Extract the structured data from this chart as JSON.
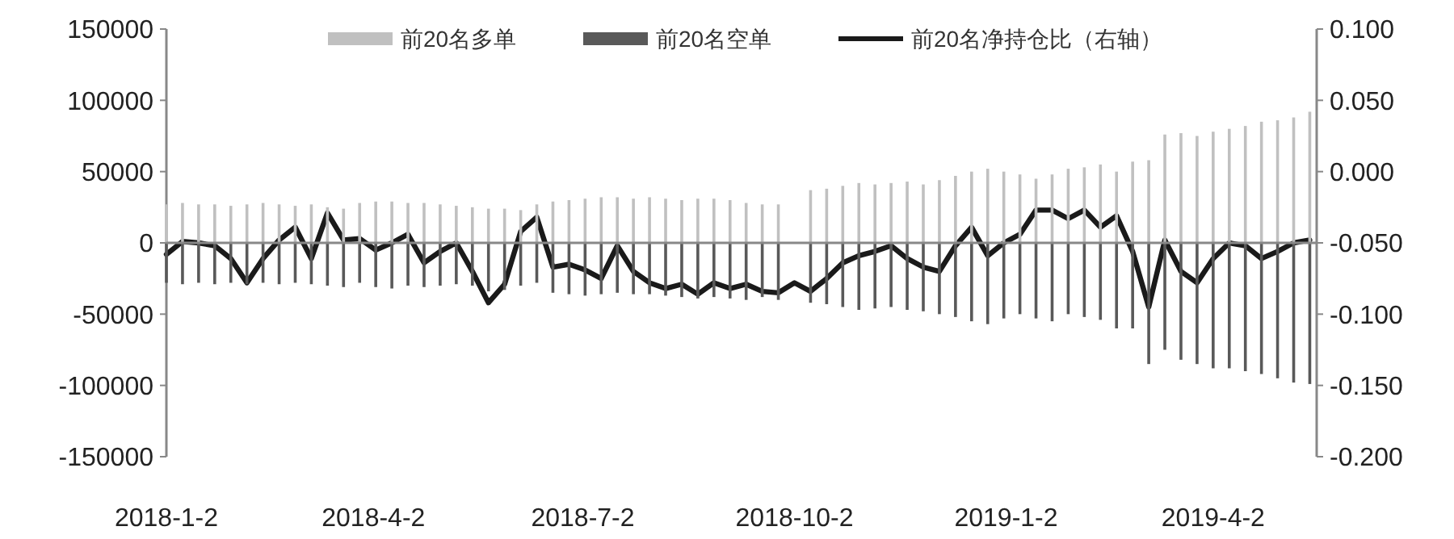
{
  "chart_data": {
    "type": "bar",
    "legend": "top",
    "x": [
      "2018-01-02",
      "2018-01-09",
      "2018-01-16",
      "2018-01-23",
      "2018-01-30",
      "2018-02-06",
      "2018-02-13",
      "2018-02-20",
      "2018-02-27",
      "2018-03-06",
      "2018-03-13",
      "2018-03-20",
      "2018-03-27",
      "2018-04-03",
      "2018-04-10",
      "2018-04-17",
      "2018-04-24",
      "2018-05-01",
      "2018-05-08",
      "2018-05-15",
      "2018-05-22",
      "2018-05-29",
      "2018-06-05",
      "2018-06-12",
      "2018-06-19",
      "2018-06-26",
      "2018-07-03",
      "2018-07-10",
      "2018-07-17",
      "2018-07-24",
      "2018-07-31",
      "2018-08-07",
      "2018-08-14",
      "2018-08-21",
      "2018-08-28",
      "2018-09-04",
      "2018-09-11",
      "2018-09-18",
      "2018-09-25",
      "2018-10-02",
      "2018-10-09",
      "2018-10-16",
      "2018-10-23",
      "2018-10-30",
      "2018-11-06",
      "2018-11-13",
      "2018-11-20",
      "2018-11-27",
      "2018-12-04",
      "2018-12-11",
      "2018-12-18",
      "2018-12-25",
      "2019-01-01",
      "2019-01-08",
      "2019-01-15",
      "2019-01-22",
      "2019-01-29",
      "2019-02-05",
      "2019-02-12",
      "2019-02-19",
      "2019-02-26",
      "2019-03-05",
      "2019-03-12",
      "2019-03-19",
      "2019-03-26",
      "2019-04-02",
      "2019-04-09",
      "2019-04-16",
      "2019-04-23",
      "2019-04-30",
      "2019-05-07",
      "2019-05-14"
    ],
    "xlim": [
      "2018-01-02",
      "2019-05-17"
    ],
    "xticks": [
      {
        "value": "2018-01-02",
        "label": "2018-1-2"
      },
      {
        "value": "2018-04-02",
        "label": "2018-4-2"
      },
      {
        "value": "2018-07-02",
        "label": "2018-7-2"
      },
      {
        "value": "2018-10-02",
        "label": "2018-10-2"
      },
      {
        "value": "2019-01-02",
        "label": "2019-1-2"
      },
      {
        "value": "2019-04-02",
        "label": "2019-4-2"
      }
    ],
    "ylim": [
      -150000,
      150000
    ],
    "yticks": [
      -150000,
      -100000,
      -50000,
      0,
      50000,
      100000,
      150000
    ],
    "y2lim": [
      -0.2,
      0.1
    ],
    "y2ticks": [
      {
        "value": -0.2,
        "label": "-0.200"
      },
      {
        "value": -0.15,
        "label": "-0.150"
      },
      {
        "value": -0.1,
        "label": "-0.100"
      },
      {
        "value": -0.05,
        "label": "-0.050"
      },
      {
        "value": 0,
        "label": "0.000"
      },
      {
        "value": 0.05,
        "label": "0.050"
      },
      {
        "value": 0.1,
        "label": "0.100"
      }
    ],
    "series": [
      {
        "name": "前20名多单",
        "color": "#c0c0c0",
        "values": [
          27000,
          28000,
          27000,
          27000,
          26000,
          27000,
          28000,
          27000,
          26000,
          27000,
          25000,
          24000,
          28000,
          29000,
          29000,
          28000,
          28000,
          27000,
          26000,
          25000,
          24000,
          24000,
          23000,
          27000,
          29000,
          30000,
          31000,
          32000,
          32000,
          31000,
          32000,
          31000,
          30000,
          31000,
          31000,
          30000,
          28000,
          27000,
          27000,
          null,
          37000,
          38000,
          40000,
          42000,
          41000,
          42000,
          43000,
          41000,
          44000,
          47000,
          50000,
          52000,
          50000,
          48000,
          45000,
          48000,
          52000,
          53000,
          55000,
          50000,
          57000,
          58000,
          76000,
          77000,
          75000,
          78000,
          80000,
          82000,
          85000,
          86000,
          88000,
          92000
        ]
      },
      {
        "name": "前20名空单",
        "color": "#595959",
        "values": [
          -28000,
          -29000,
          -28000,
          -29000,
          -28000,
          -29000,
          -28000,
          -29000,
          -28000,
          -29000,
          -30000,
          -31000,
          -28000,
          -31000,
          -32000,
          -30000,
          -31000,
          -30000,
          -29000,
          -30000,
          -34000,
          -33000,
          -30000,
          -28000,
          -35000,
          -36000,
          -37000,
          -36000,
          -35000,
          -36000,
          -36000,
          -37000,
          -38000,
          -39000,
          -38000,
          -39000,
          -40000,
          -38000,
          -40000,
          null,
          -42000,
          -43000,
          -45000,
          -47000,
          -46000,
          -45000,
          -47000,
          -48000,
          -50000,
          -52000,
          -55000,
          -57000,
          -53000,
          -50000,
          -53000,
          -55000,
          -50000,
          -52000,
          -54000,
          -60000,
          -60000,
          -85000,
          -75000,
          -82000,
          -85000,
          -88000,
          -88000,
          -90000,
          -92000,
          -95000,
          -98000,
          -99000
        ]
      },
      {
        "name": "前20名净持仓比（右轴）",
        "color": "#1a1a1a",
        "type": "line",
        "axis": "y2",
        "values": [
          -0.058,
          -0.049,
          -0.05,
          -0.052,
          -0.061,
          -0.078,
          -0.061,
          -0.048,
          -0.039,
          -0.061,
          -0.029,
          -0.048,
          -0.047,
          -0.055,
          -0.05,
          -0.044,
          -0.064,
          -0.056,
          -0.05,
          -0.07,
          -0.092,
          -0.079,
          -0.042,
          -0.032,
          -0.067,
          -0.065,
          -0.069,
          -0.075,
          -0.052,
          -0.07,
          -0.078,
          -0.082,
          -0.079,
          -0.086,
          -0.078,
          -0.082,
          -0.079,
          -0.084,
          -0.085,
          -0.078,
          -0.084,
          -0.075,
          -0.064,
          -0.059,
          -0.056,
          -0.052,
          -0.061,
          -0.067,
          -0.07,
          -0.052,
          -0.039,
          -0.059,
          -0.05,
          -0.044,
          -0.027,
          -0.027,
          -0.033,
          -0.027,
          -0.039,
          -0.031,
          -0.056,
          -0.095,
          -0.048,
          -0.07,
          -0.078,
          -0.061,
          -0.05,
          -0.052,
          -0.061,
          -0.056,
          -0.05,
          -0.048
        ]
      }
    ]
  }
}
